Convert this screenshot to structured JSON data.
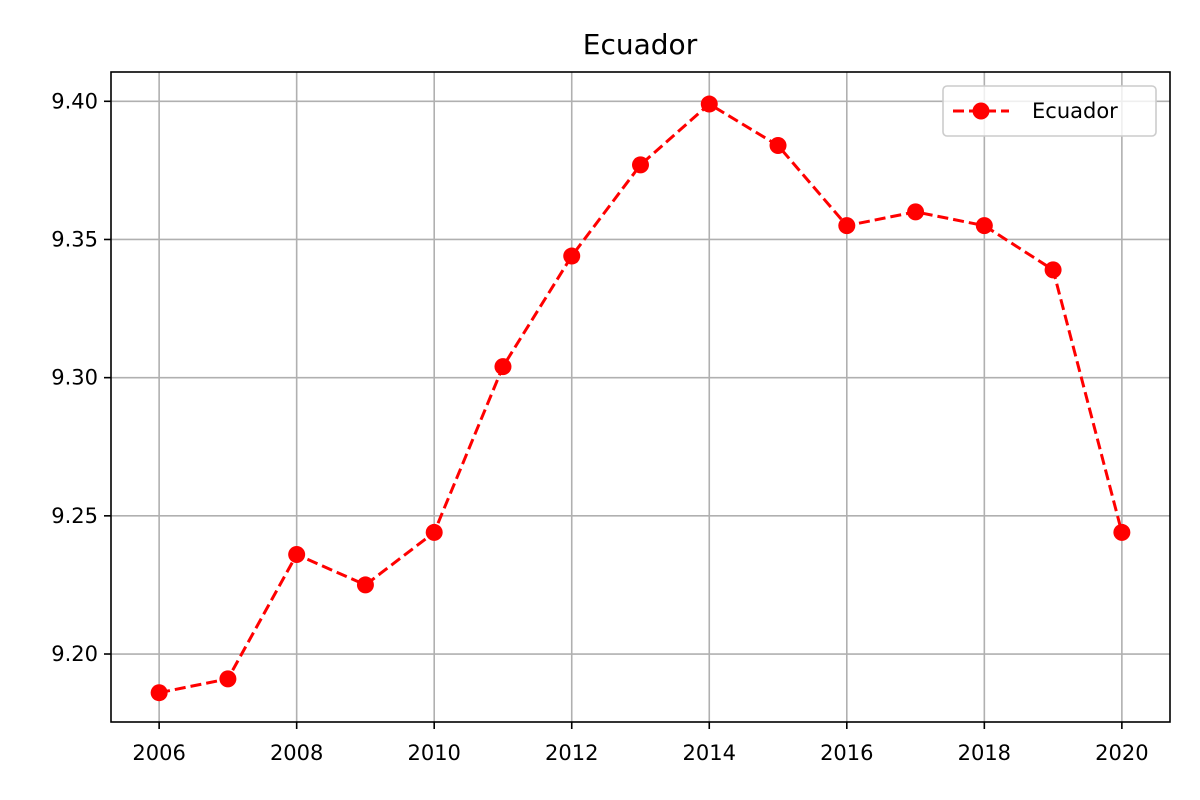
{
  "chart_data": {
    "type": "line",
    "title": "Ecuador",
    "xlabel": "",
    "ylabel": "",
    "x": [
      2006,
      2007,
      2008,
      2009,
      2010,
      2011,
      2012,
      2013,
      2014,
      2015,
      2016,
      2017,
      2018,
      2019,
      2020
    ],
    "series": [
      {
        "name": "Ecuador",
        "values": [
          9.186,
          9.191,
          9.236,
          9.225,
          9.244,
          9.304,
          9.344,
          9.377,
          9.399,
          9.384,
          9.355,
          9.36,
          9.355,
          9.339,
          9.244
        ],
        "color": "#ff0000",
        "line_style": "dashed",
        "marker": "circle"
      }
    ],
    "xlim": [
      2005.3,
      2020.7
    ],
    "ylim": [
      9.1754,
      9.4106
    ],
    "x_ticks": [
      2006,
      2008,
      2010,
      2012,
      2014,
      2016,
      2018,
      2020
    ],
    "x_tick_labels": [
      "2006",
      "2008",
      "2010",
      "2012",
      "2014",
      "2016",
      "2018",
      "2020"
    ],
    "y_ticks": [
      9.2,
      9.25,
      9.3,
      9.35,
      9.4
    ],
    "y_tick_labels": [
      "9.20",
      "9.25",
      "9.30",
      "9.35",
      "9.40"
    ],
    "grid": true,
    "legend_position": "top-right"
  }
}
